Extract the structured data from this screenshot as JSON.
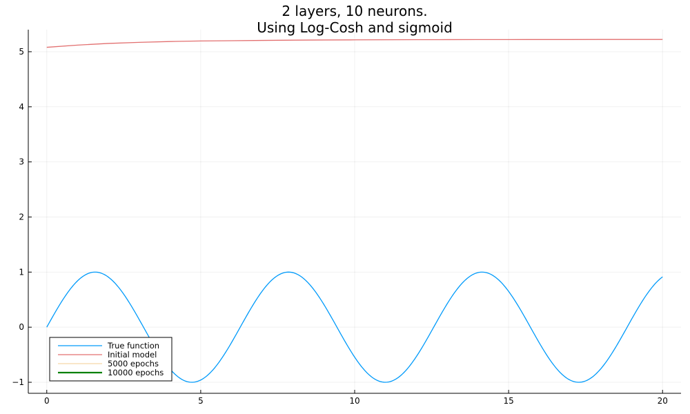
{
  "chart_data": {
    "type": "line",
    "title_lines": [
      "2 layers, 10 neurons.",
      "Using Log-Cosh and sigmoid"
    ],
    "xlabel": "",
    "ylabel": "",
    "xlim": [
      -0.6,
      20.6
    ],
    "ylim": [
      -1.2,
      5.4
    ],
    "x_ticks": [
      0,
      5,
      10,
      15,
      20
    ],
    "y_ticks": [
      -1,
      0,
      1,
      2,
      3,
      4,
      5
    ],
    "x_tick_labels": [
      "0",
      "5",
      "10",
      "15",
      "20"
    ],
    "y_tick_labels": [
      "−1",
      "0",
      "1",
      "2",
      "3",
      "4",
      "5"
    ],
    "grid": true,
    "legend_position": "bottom-left",
    "series": [
      {
        "name": "True function",
        "color": "#009AFA",
        "line_width": 1.3,
        "x": [
          0,
          0.5,
          1,
          1.5,
          2,
          2.5,
          3,
          3.5,
          4,
          4.5,
          5,
          5.5,
          6,
          6.5,
          7,
          7.5,
          8,
          8.5,
          9,
          9.5,
          10,
          10.5,
          11,
          11.5,
          12,
          12.5,
          13,
          13.5,
          14,
          14.5,
          15,
          15.5,
          16,
          16.5,
          17,
          17.5,
          18,
          18.5,
          19,
          19.5,
          20
        ],
        "y": [
          0,
          0.479,
          0.841,
          0.997,
          0.909,
          0.598,
          0.141,
          -0.351,
          -0.757,
          -0.978,
          -0.959,
          -0.706,
          -0.279,
          0.215,
          0.657,
          0.938,
          0.989,
          0.798,
          0.412,
          -0.075,
          -0.544,
          -0.88,
          -1.0,
          -0.875,
          -0.537,
          -0.066,
          0.42,
          0.804,
          0.991,
          0.935,
          0.65,
          0.206,
          -0.288,
          -0.712,
          -0.961,
          -0.977,
          -0.751,
          -0.342,
          0.15,
          0.605,
          0.913
        ]
      },
      {
        "name": "Initial model",
        "color": "#E26F6F",
        "line_width": 1.3,
        "x": [
          0,
          1,
          2,
          3,
          4,
          5,
          6,
          7,
          8,
          9,
          10,
          11,
          12,
          13,
          14,
          15,
          16,
          17,
          18,
          19,
          20
        ],
        "y": [
          5.08,
          5.12,
          5.15,
          5.17,
          5.185,
          5.195,
          5.2,
          5.205,
          5.21,
          5.213,
          5.215,
          5.217,
          5.218,
          5.219,
          5.22,
          5.22,
          5.221,
          5.221,
          5.222,
          5.222,
          5.222
        ]
      },
      {
        "name": "5000 epochs",
        "color": "#F5D7A8",
        "line_width": 1.3,
        "x": [],
        "y": []
      },
      {
        "name": "10000 epochs",
        "color": "#008000",
        "line_width": 2.2,
        "x": [],
        "y": []
      }
    ]
  }
}
